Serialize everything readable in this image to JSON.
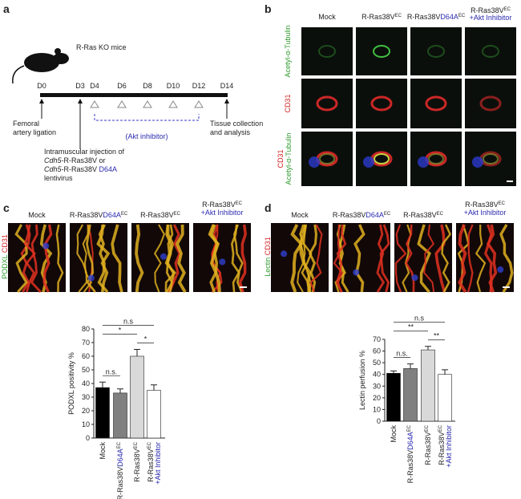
{
  "panel_a": {
    "letter": "a",
    "mouse_label": "R-Ras KO mice",
    "days": [
      "D0",
      "D3",
      "D4",
      "D6",
      "D8",
      "D10",
      "D12",
      "D14"
    ],
    "inhibitor": "(Akt inhibitor)",
    "ligation": [
      [
        {
          "text": "Femoral"
        }
      ],
      [
        {
          "text": "artery ligation"
        }
      ]
    ],
    "collection": [
      [
        {
          "text": "Tissue collection"
        }
      ],
      [
        {
          "text": "and analysis"
        }
      ]
    ],
    "injection": [
      [
        {
          "text": "Intramuscular injection of"
        }
      ],
      [
        {
          "text": "Cdh5",
          "italic": true
        },
        {
          "text": "-R-Ras38V or"
        }
      ],
      [
        {
          "text": "Cdh5",
          "italic": true
        },
        {
          "text": "-R-Ras38V "
        },
        {
          "text": "D64A",
          "color": "#2a2ab0"
        }
      ],
      [
        {
          "text": "lentivirus"
        }
      ]
    ]
  },
  "panel_b": {
    "letter": "b",
    "columns": [
      [
        [
          {
            "text": "Mock"
          }
        ]
      ],
      [
        [
          {
            "text": "R-Ras38V"
          },
          {
            "text": "EC",
            "sup": true
          }
        ]
      ],
      [
        [
          {
            "text": "R-Ras38V"
          },
          {
            "text": "D64A",
            "color": "#2a2ab0"
          },
          {
            "text": "EC",
            "sup": true
          }
        ]
      ],
      [
        [
          {
            "text": "R-Ras38V"
          },
          {
            "text": "EC",
            "sup": true
          }
        ],
        [
          {
            "text": "+Akt Inhibitor",
            "color": "#2a2ab0"
          }
        ]
      ]
    ],
    "rows": [
      [
        [
          {
            "text": "Acetyl-α-Tubulin",
            "color": "#2f9a2f"
          }
        ]
      ],
      [
        [
          {
            "text": "CD31",
            "color": "#d02020"
          }
        ]
      ],
      [
        [
          {
            "text": "CD31",
            "color": "#d02020"
          }
        ],
        [
          {
            "text": "Acetyl-α-Tubulin",
            "color": "#2f9a2f"
          }
        ]
      ]
    ]
  },
  "panel_c": {
    "letter": "c",
    "stain": [
      [
        {
          "text": "PODXL",
          "color": "#2f9a2f"
        },
        {
          "text": " CD31",
          "color": "#d02020"
        }
      ]
    ],
    "columns": [
      [
        [
          {
            "text": "Mock"
          }
        ]
      ],
      [
        [
          {
            "text": "R-Ras38V"
          },
          {
            "text": "D64A",
            "color": "#2a2ab0"
          },
          {
            "text": "EC",
            "sup": true
          }
        ]
      ],
      [
        [
          {
            "text": "R-Ras38V"
          },
          {
            "text": "EC",
            "sup": true
          }
        ]
      ],
      [
        [
          {
            "text": "R-Ras38V"
          },
          {
            "text": "EC",
            "sup": true
          }
        ],
        [
          {
            "text": "+Akt Inhibitor",
            "color": "#2a2ab0"
          }
        ]
      ]
    ]
  },
  "panel_d": {
    "letter": "d",
    "stain": [
      [
        {
          "text": "Lectin",
          "color": "#2f9a2f"
        },
        {
          "text": " CD31",
          "color": "#d02020"
        }
      ]
    ],
    "columns": [
      [
        [
          {
            "text": "Mock"
          }
        ]
      ],
      [
        [
          {
            "text": "R-Ras38V"
          },
          {
            "text": "D64A",
            "color": "#2a2ab0"
          },
          {
            "text": "EC",
            "sup": true
          }
        ]
      ],
      [
        [
          {
            "text": "R-Ras38V"
          },
          {
            "text": "EC",
            "sup": true
          }
        ]
      ],
      [
        [
          {
            "text": "R-Ras38V"
          },
          {
            "text": "EC",
            "sup": true
          }
        ],
        [
          {
            "text": "+Akt Inhibitor",
            "color": "#2a2ab0"
          }
        ]
      ]
    ]
  },
  "chart_data": [
    {
      "type": "bar",
      "y_label": "PODXL positivity %",
      "categories": [
        [
          [
            {
              "text": "Mock"
            }
          ]
        ],
        [
          [
            {
              "text": "R-Ras38V"
            },
            {
              "text": "D64A",
              "color": "#2a2ab0"
            },
            {
              "text": "EC",
              "sup": true
            }
          ]
        ],
        [
          [
            {
              "text": "R-Ras38V"
            },
            {
              "text": "EC",
              "sup": true
            }
          ]
        ],
        [
          [
            {
              "text": "R-Ras38V"
            },
            {
              "text": "EC",
              "sup": true
            }
          ],
          [
            {
              "text": "+Akt Inhibitor",
              "color": "#2a2ab0"
            }
          ]
        ]
      ],
      "values": [
        37,
        33,
        60,
        35
      ],
      "errors": [
        4,
        3,
        5,
        4
      ],
      "colors": [
        "#000000",
        "#808080",
        "#d9d9d9",
        "#ffffff"
      ],
      "ylim": [
        0,
        80
      ],
      "yticks": [
        0,
        10,
        20,
        30,
        40,
        50,
        60,
        70,
        80
      ],
      "annotations": [
        {
          "text": "n.s.",
          "between": [
            0,
            1
          ]
        },
        {
          "text": "*",
          "between": [
            2,
            3
          ]
        },
        {
          "text": "*",
          "between": [
            0,
            2
          ]
        },
        {
          "text": "n.s",
          "between": [
            0,
            3
          ]
        }
      ]
    },
    {
      "type": "bar",
      "y_label": "Lectin perfusion %",
      "categories": [
        [
          [
            {
              "text": "Mock"
            }
          ]
        ],
        [
          [
            {
              "text": "R-Ras38V"
            },
            {
              "text": "D64A",
              "color": "#2a2ab0"
            },
            {
              "text": "EC",
              "sup": true
            }
          ]
        ],
        [
          [
            {
              "text": "R-Ras38V"
            },
            {
              "text": "EC",
              "sup": true
            }
          ]
        ],
        [
          [
            {
              "text": "R-Ras38V"
            },
            {
              "text": "EC",
              "sup": true
            }
          ],
          [
            {
              "text": "+Akt Inhibitor",
              "color": "#2a2ab0"
            }
          ]
        ]
      ],
      "values": [
        41,
        45,
        61,
        40
      ],
      "errors": [
        2,
        4,
        3,
        4
      ],
      "colors": [
        "#000000",
        "#808080",
        "#d9d9d9",
        "#ffffff"
      ],
      "ylim": [
        0,
        70
      ],
      "yticks": [
        0,
        10,
        20,
        30,
        40,
        50,
        60,
        70
      ],
      "annotations": [
        {
          "text": "n.s.",
          "between": [
            0,
            1
          ]
        },
        {
          "text": "**",
          "between": [
            2,
            3
          ]
        },
        {
          "text": "**",
          "between": [
            0,
            2
          ]
        },
        {
          "text": "n.s",
          "between": [
            0,
            3
          ]
        }
      ]
    }
  ]
}
